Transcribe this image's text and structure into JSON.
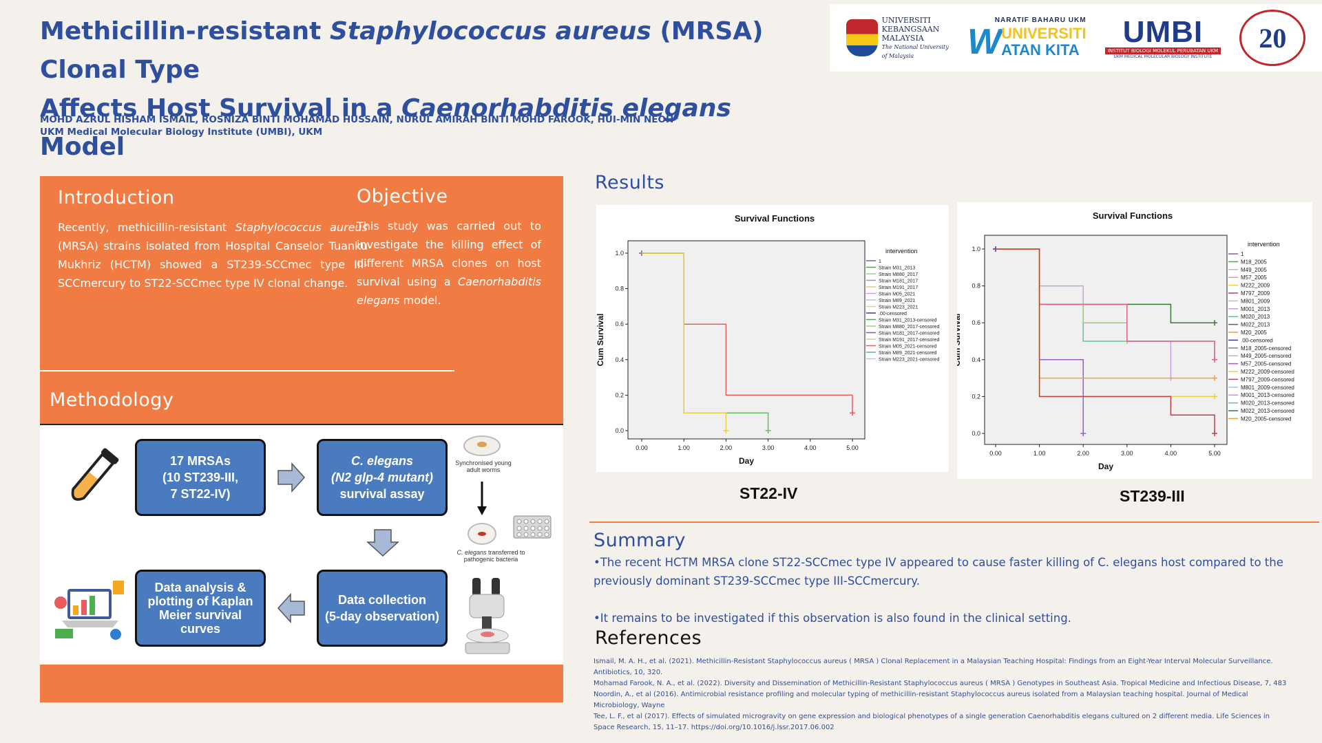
{
  "poster": {
    "title": {
      "p1": "Methicillin-resistant ",
      "p2": "Staphylococcus aureus",
      "p3": " (MRSA) Clonal Type",
      "p4": "Affects Host Survival in a ",
      "p5": "Caenorhabditis elegans",
      "p6": " Model"
    },
    "authors": "MOHD AZRUL HISHAM ISMAIL, ROSNIZA BINTI MOHAMAD HUSSAIN, NURUL AMIRAH BINTI MOHD FAROOK, HUI-MIN NEOH*",
    "affiliation": "UKM Medical Molecular Biology Institute (UMBI), UKM"
  },
  "logos": {
    "ukm": [
      "UNIVERSITI",
      "KEBANGSAAN",
      "MALAYSIA"
    ],
    "ukm_sub": [
      "The National University",
      "of Malaysia"
    ],
    "wk_top": "NARATIF BAHARU UKM",
    "wk_line1": "UNIVERSITI",
    "wk_line2": "ATAN KITA",
    "umbi": "UMBI",
    "umbi_bar": "INSTITUT BIOLOGI MOLEKUL PERUBATAN UKM",
    "umbi_sub": "UKM MEDICAL MOLECULAR BIOLOGY INSTITUTE",
    "anniv": "20"
  },
  "intro": {
    "heading": "Introduction",
    "t1": "Recently, methicillin-resistant ",
    "t2": "Staphylococcus aureus",
    "t3": " (MRSA) strains isolated from Hospital Canselor Tuanku Mukhriz (HCTM) showed a ST239-SCCmec type III-SCCmercury to ST22-SCCmec type IV clonal change."
  },
  "objective": {
    "heading": "Objective",
    "t1": "This study was carried out to investigate the killing effect of different MRSA clones on host survival using a ",
    "t2": "Caenorhabditis elegans",
    "t3": " model."
  },
  "methodology": {
    "heading": "Methodology",
    "box1": [
      "17 MRSAs",
      "(10 ST239-III,",
      "7 ST22-IV)"
    ],
    "box2_l1": "C. elegans",
    "box2_l2": "(N2 glp-4 mutant)",
    "box2_l3": "survival assay",
    "box3": [
      "Data collection",
      "(5-day observation)"
    ],
    "box4": [
      "Data analysis &",
      "plotting of Kaplan",
      "Meier survival",
      "curves"
    ],
    "caption1": [
      "Synchronised young",
      "adult worms"
    ],
    "caption2_i": "C. elegans",
    "caption2_rest": " transferred to",
    "caption2_l2": "pathogenic bacteria"
  },
  "results": {
    "heading": "Results"
  },
  "chart_data": [
    {
      "type": "line",
      "title": "Survival Functions",
      "xlabel": "Day",
      "ylabel": "Cum Survival",
      "caption": "ST22-IV",
      "xlim": [
        0,
        5
      ],
      "ylim": [
        0,
        1
      ],
      "xticks": [
        "0.00",
        "1.00",
        "2.00",
        "3.00",
        "4.00",
        "5.00"
      ],
      "yticks": [
        "0.0",
        "0.2",
        "0.4",
        "0.6",
        "0.8",
        "1.0"
      ],
      "legend_title": "intervention",
      "legend": [
        "1",
        "Strain M31_2013",
        "Strain M880_2017",
        "Strain M181_2017",
        "Strain M191_2017",
        "Strain M05_2021",
        "Strain M89_2021",
        "Strain M223_2021",
        ".00-censored",
        "Strain M31_2013-censored",
        "Strain M880_2017-censored",
        "Strain M181_2017-censored",
        "Strain M191_2017-censored",
        "Strain M05_2021-censored",
        "Strain M89_2021-censored",
        "Strain M223_2021-censored"
      ],
      "legend_colors": [
        "#7b5ea7",
        "#5a9e5a",
        "#9bd08a",
        "#7aa0d8",
        "#e8c47a",
        "#c9a0dc",
        "#9ec8e8",
        "#d8d0a0",
        "#3a3a9c",
        "#5a9e5a",
        "#9bd08a",
        "#7b5ea7",
        "#e8c47a",
        "#e06060",
        "#60b0b0",
        "#a0d0e8"
      ],
      "series": [
        {
          "color": "#7b5ea7",
          "x": [
            0
          ],
          "y": [
            1.0
          ]
        },
        {
          "color": "#e06060",
          "x": [
            0,
            1,
            2,
            5
          ],
          "y": [
            1.0,
            0.6,
            0.2,
            0.1
          ]
        },
        {
          "color": "#5fbf5f",
          "x": [
            0,
            1,
            3
          ],
          "y": [
            1.0,
            0.1,
            0.0
          ]
        },
        {
          "color": "#e8d040",
          "x": [
            0,
            1,
            2
          ],
          "y": [
            1.0,
            0.1,
            0.0
          ]
        }
      ]
    },
    {
      "type": "line",
      "title": "Survival Functions",
      "xlabel": "Day",
      "ylabel": "Cum Survival",
      "caption": "ST239-III",
      "xlim": [
        0,
        5
      ],
      "ylim": [
        0,
        1
      ],
      "xticks": [
        "0.00",
        "1.00",
        "2.00",
        "3.00",
        "4.00",
        "5.00"
      ],
      "yticks": [
        "0.0",
        "0.2",
        "0.4",
        "0.6",
        "0.8",
        "1.0"
      ],
      "legend_title": "intervention",
      "legend": [
        "1",
        "M18_2005",
        "M49_2005",
        "M57_2005",
        "M222_2009",
        "M797_2009",
        "M801_2009",
        "M001_2013",
        "M020_2013",
        "M022_2013",
        "M20_2005",
        ".00-censored",
        "M18_2005-censored",
        "M49_2005-censored",
        "M57_2005-censored",
        "M222_2009-censored",
        "M797_2009-censored",
        "M801_2009-censored",
        "M001_2013-censored",
        "M020_2013-censored",
        "M022_2013-censored",
        "M20_2005-censored"
      ],
      "legend_colors": [
        "#7b5ea7",
        "#5a9e5a",
        "#9bd08a",
        "#c9a0dc",
        "#e8d040",
        "#c04040",
        "#9ec8e8",
        "#b8a0d8",
        "#60c0a0",
        "#2e7d32",
        "#f0a040",
        "#3a3a9c",
        "#5a9e5a",
        "#9bd08a",
        "#9c5ec9",
        "#e8d040",
        "#c04040",
        "#9ec8e8",
        "#b8a0d8",
        "#60c0a0",
        "#2e7d32",
        "#f0a040"
      ],
      "series": [
        {
          "color": "#3a3a9c",
          "x": [
            0
          ],
          "y": [
            1.0
          ]
        },
        {
          "color": "#2e7d32",
          "x": [
            0,
            1,
            4,
            5
          ],
          "y": [
            1.0,
            0.7,
            0.6,
            0.6
          ]
        },
        {
          "color": "#5fbf9f",
          "x": [
            0,
            1,
            2,
            5
          ],
          "y": [
            1.0,
            0.7,
            0.5,
            0.4
          ]
        },
        {
          "color": "#9ad06a",
          "x": [
            0,
            1,
            2,
            3
          ],
          "y": [
            1.0,
            0.7,
            0.6,
            0.5
          ]
        },
        {
          "color": "#c9a0dc",
          "x": [
            0,
            1,
            2,
            3,
            4
          ],
          "y": [
            1.0,
            0.8,
            0.7,
            0.5,
            0.3
          ]
        },
        {
          "color": "#e06090",
          "x": [
            0,
            1,
            2,
            3,
            4,
            5
          ],
          "y": [
            1.0,
            0.7,
            0.7,
            0.5,
            0.5,
            0.4
          ]
        },
        {
          "color": "#9c5ec9",
          "x": [
            0,
            1,
            2
          ],
          "y": [
            1.0,
            0.4,
            0.0
          ]
        },
        {
          "color": "#f0a040",
          "x": [
            0,
            1,
            5
          ],
          "y": [
            1.0,
            0.3,
            0.3
          ]
        },
        {
          "color": "#e8d040",
          "x": [
            0,
            1,
            5
          ],
          "y": [
            1.0,
            0.2,
            0.2
          ]
        },
        {
          "color": "#c04040",
          "x": [
            0,
            1,
            4,
            5
          ],
          "y": [
            1.0,
            0.2,
            0.1,
            0.0
          ]
        }
      ]
    }
  ],
  "summary": {
    "heading": "Summary",
    "b1": "•The recent HCTM MRSA clone ST22-SCCmec type IV appeared to cause faster killing of C. elegans host compared to the previously dominant ST239-SCCmec type III-SCCmercury.",
    "b2": "•It remains to be investigated if this observation is also found in the clinical setting."
  },
  "references": {
    "heading": "References",
    "items": [
      "Ismail, M. A. H., et al. (2021). Methicillin-Resistant Staphylococcus aureus ( MRSA ) Clonal Replacement in a Malaysian Teaching Hospital: Findings from an Eight-Year Interval Molecular Surveillance. Antibiotics, 10, 320.",
      "Mohamad Farook, N. A., et al. (2022). Diversity and Dissemination of Methicillin-Resistant Staphylococcus aureus ( MRSA ) Genotypes in Southeast Asia. Tropical Medicine and Infectious Disease, 7, 483",
      "Noordin, A., et al (2016). Antimicrobial resistance profiling and molecular typing of methicillin-resistant Staphylococcus aureus isolated from a Malaysian teaching hospital. Journal of Medical Microbiology, Wayne",
      "Tee, L. F., et al (2017). Effects of simulated microgravity on gene expression and biological phenotypes of a single generation Caenorhabditis elegans cultured on 2 different media. Life Sciences in Space Research, 15, 11–17. https://doi.org/10.1016/j.lssr.2017.06.002"
    ]
  }
}
